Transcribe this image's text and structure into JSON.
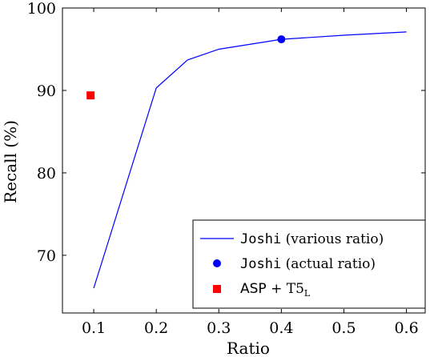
{
  "chart_data": {
    "type": "line",
    "xlabel": "Ratio",
    "ylabel": "Recall (%)",
    "xlim": [
      0.05,
      0.63
    ],
    "ylim": [
      63,
      100
    ],
    "xticks": [
      0.1,
      0.2,
      0.3,
      0.4,
      0.5,
      0.6
    ],
    "xtick_labels": [
      "0.1",
      "0.2",
      "0.3",
      "0.4",
      "0.5",
      "0.6"
    ],
    "yticks": [
      70,
      80,
      90,
      100
    ],
    "ytick_labels": [
      "70",
      "80",
      "90",
      "100"
    ],
    "grid": false,
    "legend_position": "bottom-right",
    "series": [
      {
        "name": "Joshi (various ratio)",
        "type": "line",
        "color": "#0000ff",
        "x": [
          0.1,
          0.2,
          0.25,
          0.3,
          0.4,
          0.5,
          0.6
        ],
        "y": [
          66.0,
          90.3,
          93.7,
          95.0,
          96.2,
          96.7,
          97.1
        ]
      },
      {
        "name": "Joshi (actual ratio)",
        "type": "scatter",
        "marker": "circle",
        "color": "#0000ff",
        "x": [
          0.4
        ],
        "y": [
          96.2
        ]
      },
      {
        "name": "ASP + T5L",
        "type": "scatter",
        "marker": "square",
        "color": "#ff0000",
        "x": [
          0.095
        ],
        "y": [
          89.4
        ]
      }
    ]
  },
  "legend": {
    "line": {
      "mono": "Joshi",
      "rest": " (various ratio)"
    },
    "circle": {
      "mono": "Joshi",
      "rest": " (actual ratio)"
    },
    "square": {
      "sans": "ASP",
      "plus": " + ",
      "t5": "T5",
      "sub": "L"
    }
  }
}
